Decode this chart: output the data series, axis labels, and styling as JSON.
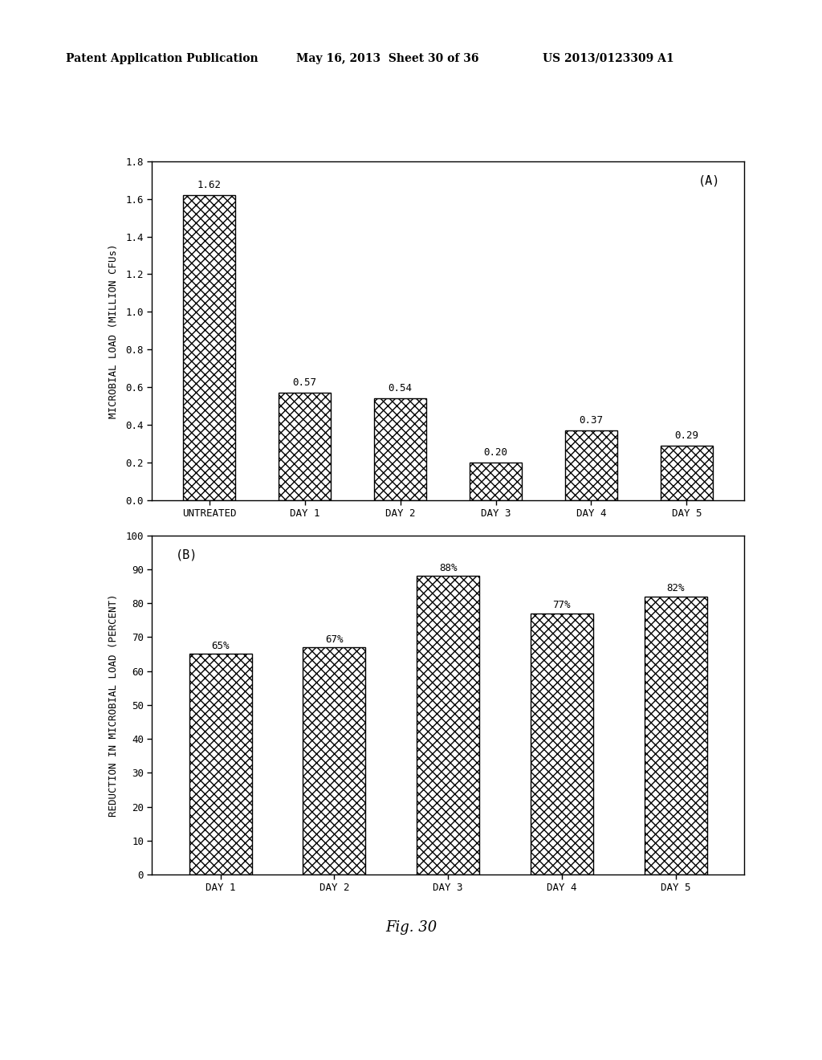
{
  "chart_A": {
    "categories": [
      "UNTREATED",
      "DAY 1",
      "DAY 2",
      "DAY 3",
      "DAY 4",
      "DAY 5"
    ],
    "values": [
      1.62,
      0.57,
      0.54,
      0.2,
      0.37,
      0.29
    ],
    "labels": [
      "1.62",
      "0.57",
      "0.54",
      "0.20",
      "0.37",
      "0.29"
    ],
    "ylabel": "MICROBIAL LOAD (MILLION CFUs)",
    "ylim": [
      0.0,
      1.8
    ],
    "yticks": [
      0.0,
      0.2,
      0.4,
      0.6,
      0.8,
      1.0,
      1.2,
      1.4,
      1.6,
      1.8
    ],
    "panel_label": "(A)"
  },
  "chart_B": {
    "categories": [
      "DAY 1",
      "DAY 2",
      "DAY 3",
      "DAY 4",
      "DAY 5"
    ],
    "values": [
      65,
      67,
      88,
      77,
      82
    ],
    "labels": [
      "65%",
      "67%",
      "88%",
      "77%",
      "82%"
    ],
    "ylabel": "REDUCTION IN MICROBIAL LOAD (PERCENT)",
    "ylim": [
      0,
      100
    ],
    "yticks": [
      0,
      10,
      20,
      30,
      40,
      50,
      60,
      70,
      80,
      90,
      100
    ],
    "panel_label": "(B)"
  },
  "header_left": "Patent Application Publication",
  "header_mid": "May 16, 2013  Sheet 30 of 36",
  "header_right": "US 2013/0123309 A1",
  "fig_label": "Fig. 30",
  "background_color": "#ffffff",
  "bar_facecolor": "#ffffff",
  "bar_edgecolor": "#000000",
  "hatch_pattern": "xxx",
  "bar_width": 0.55
}
